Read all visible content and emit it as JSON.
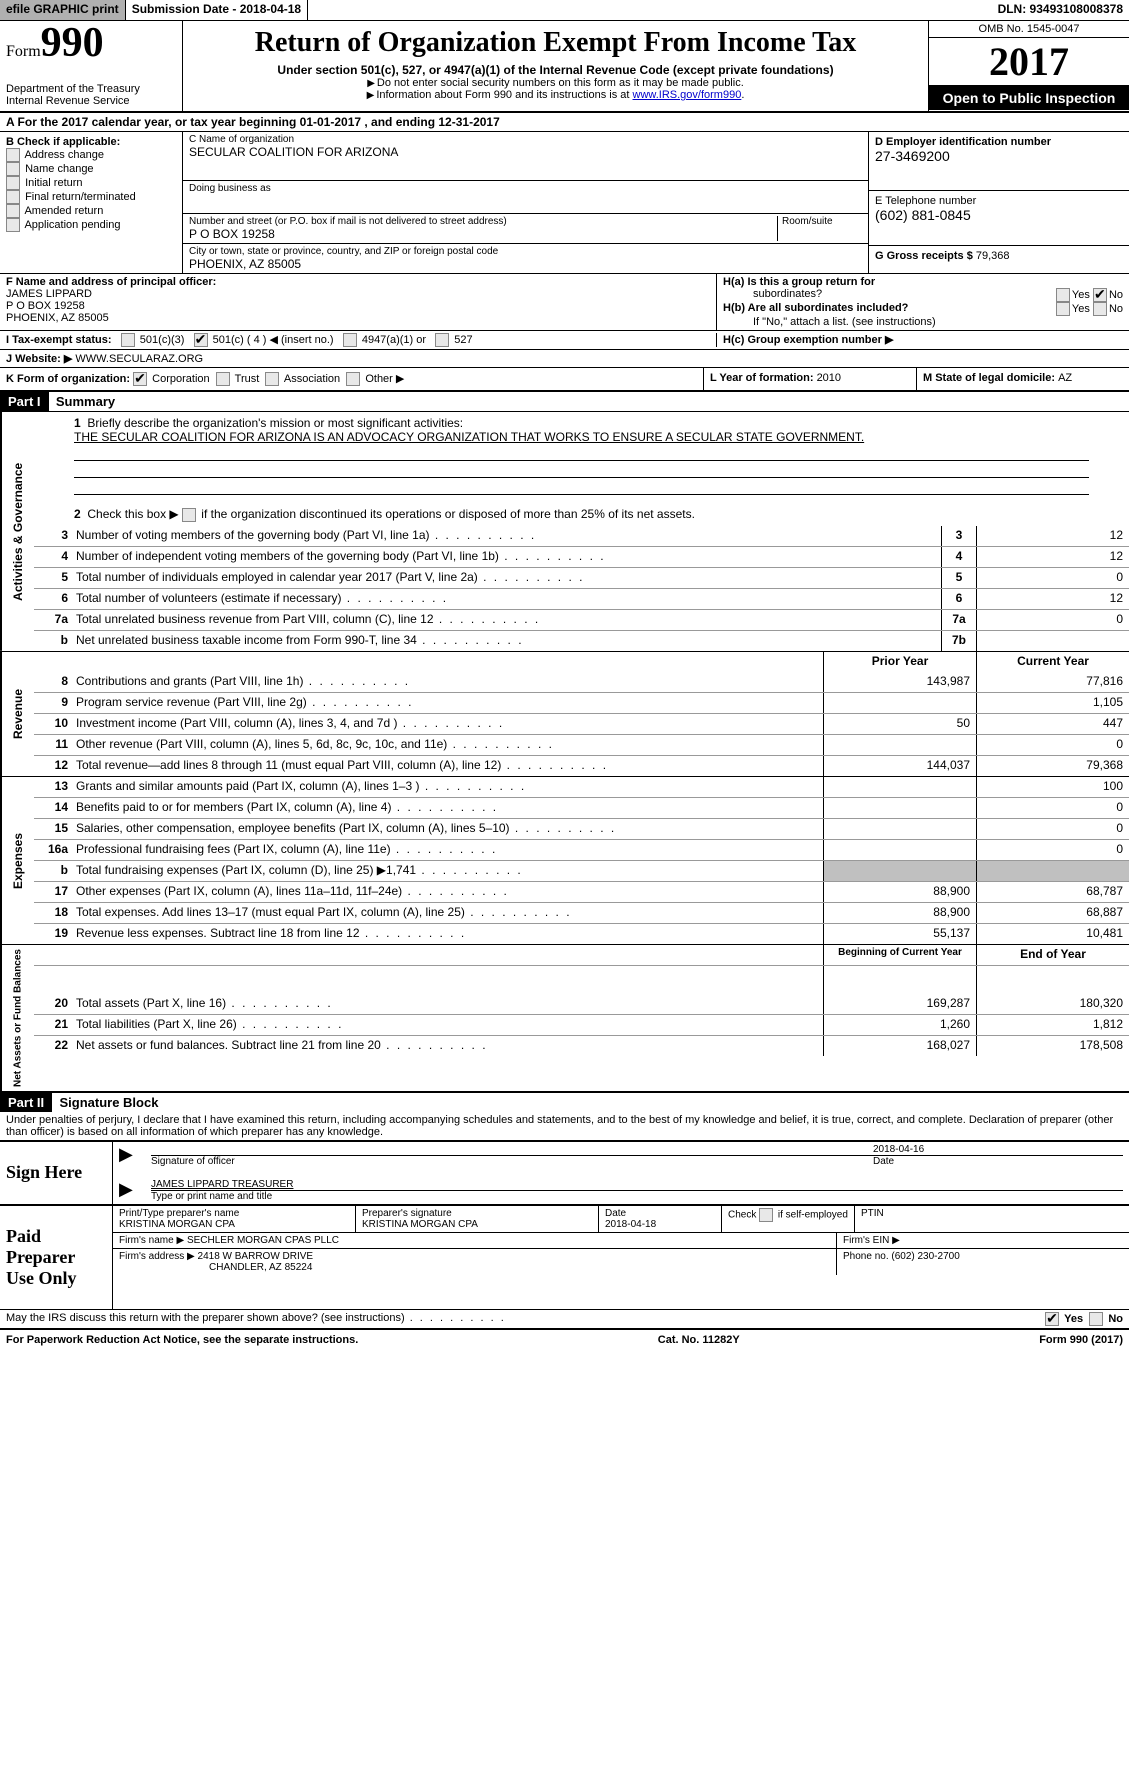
{
  "topbar": {
    "efile": "efile GRAPHIC print",
    "submission": "Submission Date - 2018-04-18",
    "dln": "DLN: 93493108008378"
  },
  "header": {
    "form_label": "Form",
    "form_number": "990",
    "dept1": "Department of the Treasury",
    "dept2": "Internal Revenue Service",
    "title": "Return of Organization Exempt From Income Tax",
    "subtitle": "Under section 501(c), 527, or 4947(a)(1) of the Internal Revenue Code (except private foundations)",
    "instr1": "Do not enter social security numbers on this form as it may be made public.",
    "instr2": "Information about Form 990 and its instructions is at ",
    "instr_link": "www.IRS.gov/form990",
    "omb": "OMB No. 1545-0047",
    "year": "2017",
    "open": "Open to Public Inspection"
  },
  "sectionA": {
    "text": "A  For the 2017 calendar year, or tax year beginning 01-01-2017    , and ending 12-31-2017"
  },
  "sectionB": {
    "label": "B Check if applicable:",
    "opts": [
      "Address change",
      "Name change",
      "Initial return",
      "Final return/terminated",
      "Amended return",
      "Application pending"
    ]
  },
  "sectionC": {
    "name_label": "C Name of organization",
    "name": "SECULAR COALITION FOR ARIZONA",
    "dba_label": "Doing business as",
    "addr_label": "Number and street (or P.O. box if mail is not delivered to street address)",
    "room_label": "Room/suite",
    "addr": "P O BOX 19258",
    "city_label": "City or town, state or province, country, and ZIP or foreign postal code",
    "city": "PHOENIX, AZ  85005"
  },
  "sectionD": {
    "ein_label": "D Employer identification number",
    "ein": "27-3469200",
    "phone_label": "E Telephone number",
    "phone": "(602) 881-0845",
    "gross_label": "G Gross receipts $ ",
    "gross": "79,368"
  },
  "sectionF": {
    "label": "F Name and address of principal officer:",
    "name": "JAMES LIPPARD",
    "addr1": "P O BOX 19258",
    "addr2": "PHOENIX, AZ  85005"
  },
  "sectionH": {
    "a": "H(a) Is this a group return for",
    "a2": "subordinates?",
    "b": "H(b) Are all subordinates included?",
    "note": "If \"No,\" attach a list. (see instructions)",
    "c": "H(c) Group exemption number ▶",
    "yes": "Yes",
    "no": "No"
  },
  "sectionI": {
    "label": "I  Tax-exempt status:",
    "o1": "501(c)(3)",
    "o2": "501(c) ( 4 ) ◀ (insert no.)",
    "o3": "4947(a)(1) or",
    "o4": "527"
  },
  "sectionJ": {
    "label": "J  Website: ▶",
    "value": "WWW.SECULARAZ.ORG"
  },
  "sectionK": {
    "label": "K Form of organization:",
    "opts": [
      "Corporation",
      "Trust",
      "Association",
      "Other ▶"
    ]
  },
  "sectionL": {
    "label": "L Year of formation: ",
    "value": "2010"
  },
  "sectionM": {
    "label": "M State of legal domicile: ",
    "value": "AZ"
  },
  "part1": {
    "header": "Part I",
    "title": "Summary",
    "q1": "Briefly describe the organization's mission or most significant activities:",
    "mission": "THE SECULAR COALITION FOR ARIZONA IS AN ADVOCACY ORGANIZATION THAT WORKS TO ENSURE A SECULAR STATE GOVERNMENT.",
    "q2": "Check this box ▶       if the organization discontinued its operations or disposed of more than 25% of its net assets.",
    "rows_gov": [
      {
        "n": "3",
        "d": "Number of voting members of the governing body (Part VI, line 1a)",
        "b": "3",
        "v": "12"
      },
      {
        "n": "4",
        "d": "Number of independent voting members of the governing body (Part VI, line 1b)",
        "b": "4",
        "v": "12"
      },
      {
        "n": "5",
        "d": "Total number of individuals employed in calendar year 2017 (Part V, line 2a)",
        "b": "5",
        "v": "0"
      },
      {
        "n": "6",
        "d": "Total number of volunteers (estimate if necessary)",
        "b": "6",
        "v": "12"
      },
      {
        "n": "7a",
        "d": "Total unrelated business revenue from Part VIII, column (C), line 12",
        "b": "7a",
        "v": "0"
      },
      {
        "n": "b",
        "d": "Net unrelated business taxable income from Form 990-T, line 34",
        "b": "7b",
        "v": ""
      }
    ],
    "col_prior": "Prior Year",
    "col_current": "Current Year",
    "rows_rev": [
      {
        "n": "8",
        "d": "Contributions and grants (Part VIII, line 1h)",
        "c1": "143,987",
        "c2": "77,816"
      },
      {
        "n": "9",
        "d": "Program service revenue (Part VIII, line 2g)",
        "c1": "",
        "c2": "1,105"
      },
      {
        "n": "10",
        "d": "Investment income (Part VIII, column (A), lines 3, 4, and 7d )",
        "c1": "50",
        "c2": "447"
      },
      {
        "n": "11",
        "d": "Other revenue (Part VIII, column (A), lines 5, 6d, 8c, 9c, 10c, and 11e)",
        "c1": "",
        "c2": "0"
      },
      {
        "n": "12",
        "d": "Total revenue—add lines 8 through 11 (must equal Part VIII, column (A), line 12)",
        "c1": "144,037",
        "c2": "79,368"
      }
    ],
    "rows_exp": [
      {
        "n": "13",
        "d": "Grants and similar amounts paid (Part IX, column (A), lines 1–3 )",
        "c1": "",
        "c2": "100"
      },
      {
        "n": "14",
        "d": "Benefits paid to or for members (Part IX, column (A), line 4)",
        "c1": "",
        "c2": "0"
      },
      {
        "n": "15",
        "d": "Salaries, other compensation, employee benefits (Part IX, column (A), lines 5–10)",
        "c1": "",
        "c2": "0"
      },
      {
        "n": "16a",
        "d": "Professional fundraising fees (Part IX, column (A), line 11e)",
        "c1": "",
        "c2": "0"
      },
      {
        "n": "b",
        "d": "Total fundraising expenses (Part IX, column (D), line 25) ▶1,741",
        "c1": "GREY",
        "c2": "GREY"
      },
      {
        "n": "17",
        "d": "Other expenses (Part IX, column (A), lines 11a–11d, 11f–24e)",
        "c1": "88,900",
        "c2": "68,787"
      },
      {
        "n": "18",
        "d": "Total expenses. Add lines 13–17 (must equal Part IX, column (A), line 25)",
        "c1": "88,900",
        "c2": "68,887"
      },
      {
        "n": "19",
        "d": "Revenue less expenses. Subtract line 18 from line 12",
        "c1": "55,137",
        "c2": "10,481"
      }
    ],
    "col_begin": "Beginning of Current Year",
    "col_end": "End of Year",
    "rows_net": [
      {
        "n": "20",
        "d": "Total assets (Part X, line 16)",
        "c1": "169,287",
        "c2": "180,320"
      },
      {
        "n": "21",
        "d": "Total liabilities (Part X, line 26)",
        "c1": "1,260",
        "c2": "1,812"
      },
      {
        "n": "22",
        "d": "Net assets or fund balances. Subtract line 21 from line 20",
        "c1": "168,027",
        "c2": "178,508"
      }
    ],
    "vlabels": {
      "gov": "Activities & Governance",
      "rev": "Revenue",
      "exp": "Expenses",
      "net": "Net Assets or Fund Balances"
    }
  },
  "part2": {
    "header": "Part II",
    "title": "Signature Block",
    "penalty": "Under penalties of perjury, I declare that I have examined this return, including accompanying schedules and statements, and to the best of my knowledge and belief, it is true, correct, and complete. Declaration of preparer (other than officer) is based on all information of which preparer has any knowledge.",
    "sign_here": "Sign Here",
    "sig_date": "2018-04-16",
    "sig_officer": "Signature of officer",
    "sig_date_label": "Date",
    "officer_name": "JAMES LIPPARD TREASURER",
    "officer_label": "Type or print name and title",
    "paid": "Paid Preparer Use Only",
    "prep_name_label": "Print/Type preparer's name",
    "prep_name": "KRISTINA MORGAN CPA",
    "prep_sig_label": "Preparer's signature",
    "prep_sig": "KRISTINA MORGAN CPA",
    "prep_date_label": "Date",
    "prep_date": "2018-04-18",
    "check_label": "Check         if self-employed",
    "ptin": "PTIN",
    "firm_name_label": "Firm's name     ▶",
    "firm_name": "SECHLER MORGAN CPAS PLLC",
    "firm_ein": "Firm's EIN ▶",
    "firm_addr_label": "Firm's address ▶",
    "firm_addr1": "2418 W BARROW DRIVE",
    "firm_addr2": "CHANDLER, AZ  85224",
    "firm_phone_label": "Phone no. ",
    "firm_phone": "(602) 230-2700",
    "discuss": "May the IRS discuss this return with the preparer shown above? (see instructions)"
  },
  "footer": {
    "left": "For Paperwork Reduction Act Notice, see the separate instructions.",
    "center": "Cat. No. 11282Y",
    "right": "Form 990 (2017)"
  }
}
